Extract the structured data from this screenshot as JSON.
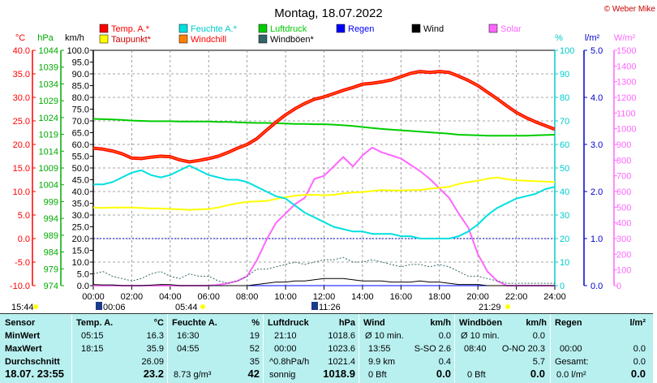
{
  "header": {
    "title": "Montag, 18.07.2022",
    "copyright": "© Weber Mike"
  },
  "legend": [
    {
      "label": "Temp. A.*",
      "color": "#ff0000"
    },
    {
      "label": "Feuchte A.*",
      "color": "#00e0e0"
    },
    {
      "label": "Luftdruck",
      "color": "#00cc00"
    },
    {
      "label": "Regen",
      "color": "#0000ff"
    },
    {
      "label": "Wind",
      "color": "#000000"
    },
    {
      "label": "Solar",
      "color": "#ff66ff"
    },
    {
      "label": "Taupunkt*",
      "color": "#ffff00"
    },
    {
      "label": "Windchill",
      "color": "#ff8000"
    },
    {
      "label": "Windböen*",
      "color": "#336666"
    }
  ],
  "axes": {
    "temp": {
      "unit": "°C",
      "ticks": [
        "40.0",
        "35.0",
        "30.0",
        "25.0",
        "20.0",
        "15.0",
        "10.0",
        "5.0",
        "0.0",
        "-5.0",
        "-10.0"
      ],
      "color": "#ff0000"
    },
    "press": {
      "unit": "hPa",
      "ticks": [
        "1044",
        "1039",
        "1034",
        "1029",
        "1024",
        "1019",
        "1014",
        "1009",
        "1004",
        "999",
        "994",
        "989",
        "984",
        "979",
        "974"
      ],
      "color": "#00aa00"
    },
    "wind": {
      "unit": "km/h",
      "ticks": [
        "100.0",
        "95.0",
        "90.0",
        "85.0",
        "80.0",
        "75.0",
        "70.0",
        "65.0",
        "60.0",
        "55.0",
        "50.0",
        "45.0",
        "40.0",
        "35.0",
        "30.0",
        "25.0",
        "20.0",
        "15.0",
        "10.0",
        "5.0",
        "0.0"
      ],
      "color": "#000000"
    },
    "hum": {
      "unit": "%",
      "ticks": [
        "100",
        "90",
        "80",
        "70",
        "60",
        "50",
        "40",
        "30",
        "20",
        "10",
        "0"
      ],
      "color": "#00cccc"
    },
    "rain": {
      "unit": "l/m²",
      "ticks": [
        "5.0",
        "4.0",
        "3.0",
        "2.0",
        "1.0",
        "0.0"
      ],
      "color": "#0000cc"
    },
    "solar": {
      "unit": "W/m²",
      "ticks": [
        "1500",
        "1400",
        "1300",
        "1200",
        "1100",
        "1000",
        "900",
        "800",
        "700",
        "600",
        "500",
        "400",
        "300",
        "200",
        "100",
        "0"
      ],
      "color": "#ff66ff"
    },
    "x": {
      "ticks": [
        "00:00",
        "02:00",
        "04:00",
        "06:00",
        "08:00",
        "10:00",
        "12:00",
        "14:00",
        "16:00",
        "18:00",
        "20:00",
        "22:00",
        "24:00"
      ]
    }
  },
  "sun_markers": {
    "sunrise_label": "05:44",
    "sunset_label": "21:29",
    "moon_labels": [
      "00:06",
      "11:26"
    ],
    "day_length": "15:44"
  },
  "chart_data": {
    "type": "line",
    "title": "Montag, 18.07.2022",
    "x_hours": [
      0,
      0.5,
      1,
      1.5,
      2,
      2.5,
      3,
      3.5,
      4,
      4.5,
      5,
      5.5,
      6,
      6.5,
      7,
      7.5,
      8,
      8.5,
      9,
      9.5,
      10,
      10.5,
      11,
      11.5,
      12,
      12.5,
      13,
      13.5,
      14,
      14.5,
      15,
      15.5,
      16,
      16.5,
      17,
      17.5,
      18,
      18.5,
      19,
      19.5,
      20,
      20.5,
      21,
      21.5,
      22,
      22.5,
      23,
      23.5,
      24
    ],
    "series": [
      {
        "name": "Temp. A.*",
        "axis": "temp",
        "color": "#ff0000",
        "width": 4,
        "values": [
          19.2,
          19.0,
          18.6,
          18.0,
          17.1,
          17.0,
          17.3,
          17.5,
          17.4,
          16.7,
          16.3,
          16.6,
          17.0,
          17.5,
          18.3,
          19.2,
          20.0,
          21.2,
          23.0,
          24.7,
          26.3,
          27.6,
          28.7,
          29.6,
          30.1,
          30.8,
          31.5,
          32.1,
          32.8,
          33.0,
          33.3,
          33.7,
          34.4,
          35.1,
          35.5,
          35.3,
          35.5,
          35.3,
          34.5,
          33.6,
          32.5,
          31.1,
          29.7,
          28.2,
          26.8,
          25.7,
          24.8,
          24.0,
          23.2
        ]
      },
      {
        "name": "Windchill",
        "axis": "temp",
        "color": "#ff8000",
        "width": 1,
        "values": [
          19.2,
          19.0,
          18.6,
          18.0,
          17.1,
          17.0,
          17.3,
          17.5,
          17.4,
          16.7,
          16.3,
          16.6,
          17.0,
          17.5,
          18.3,
          19.2,
          20.0,
          21.2,
          23.0,
          24.7,
          26.3,
          27.6,
          28.7,
          29.6,
          30.1,
          30.8,
          31.5,
          32.1,
          32.8,
          33.0,
          33.3,
          33.7,
          34.4,
          35.1,
          35.5,
          35.3,
          35.5,
          35.3,
          34.5,
          33.6,
          32.5,
          31.1,
          29.7,
          28.2,
          26.8,
          25.7,
          24.8,
          24.0,
          23.2
        ]
      },
      {
        "name": "Feuchte A.*",
        "axis": "hum",
        "color": "#00e0e0",
        "width": 2,
        "values": [
          43,
          43,
          44,
          46,
          48,
          49,
          47,
          46,
          47,
          49,
          51,
          49,
          47,
          46,
          45,
          45,
          44,
          42,
          40,
          38,
          37,
          34,
          31,
          29,
          27,
          25,
          24,
          23,
          23,
          22,
          22,
          22,
          21,
          21,
          20,
          20,
          20,
          20,
          21,
          23,
          26,
          30,
          33,
          35,
          37,
          38,
          39,
          41,
          42
        ]
      },
      {
        "name": "Luftdruck",
        "axis": "press",
        "color": "#00cc00",
        "width": 2,
        "values": [
          1023.6,
          1023.5,
          1023.4,
          1023.3,
          1023.1,
          1023.0,
          1022.9,
          1022.9,
          1022.9,
          1022.8,
          1022.8,
          1022.8,
          1022.8,
          1022.7,
          1022.7,
          1022.6,
          1022.5,
          1022.4,
          1022.4,
          1022.3,
          1022.2,
          1022.1,
          1022.1,
          1022.0,
          1022.0,
          1021.9,
          1021.7,
          1021.5,
          1021.2,
          1020.9,
          1020.6,
          1020.4,
          1020.2,
          1020.0,
          1019.8,
          1019.6,
          1019.4,
          1019.2,
          1018.9,
          1018.8,
          1018.7,
          1018.6,
          1018.6,
          1018.6,
          1018.6,
          1018.6,
          1018.7,
          1018.8,
          1018.9
        ]
      },
      {
        "name": "Taupunkt*",
        "axis": "temp",
        "color": "#ffff00",
        "width": 2,
        "values": [
          6.6,
          6.5,
          6.6,
          6.6,
          6.6,
          6.5,
          6.4,
          6.4,
          6.3,
          6.2,
          6.1,
          6.2,
          6.3,
          6.6,
          7.1,
          7.5,
          7.8,
          7.9,
          8.0,
          8.4,
          8.8,
          9.1,
          9.3,
          9.3,
          9.2,
          9.3,
          9.6,
          9.8,
          9.9,
          10.1,
          10.3,
          10.2,
          10.2,
          10.3,
          10.3,
          10.6,
          10.8,
          11.0,
          11.6,
          12.0,
          12.3,
          12.7,
          13.0,
          12.6,
          12.4,
          12.3,
          12.2,
          12.1,
          12.0
        ]
      },
      {
        "name": "Windböen*",
        "axis": "wind",
        "color": "#336666",
        "width": 1,
        "dashed": true,
        "values": [
          5,
          6,
          4,
          3,
          2,
          3,
          5,
          6,
          4,
          3,
          5,
          4,
          4,
          2,
          1,
          2,
          4,
          7,
          7,
          8,
          9,
          10,
          9,
          10,
          11,
          11,
          12,
          10,
          10,
          11,
          10,
          9,
          8,
          9,
          9,
          8,
          9,
          8,
          6,
          4,
          4,
          3,
          2,
          1,
          1,
          1,
          1,
          1,
          1
        ]
      },
      {
        "name": "Wind",
        "axis": "wind",
        "color": "#000000",
        "width": 1,
        "values": [
          0.5,
          0.3,
          0.3,
          0,
          0,
          0,
          0.2,
          0.5,
          0.4,
          0,
          0,
          0,
          0,
          0,
          0,
          0,
          0,
          0.5,
          1.0,
          1.5,
          1.5,
          2.0,
          2.0,
          2.5,
          3.0,
          3.0,
          3.0,
          2.5,
          2.0,
          2.0,
          2.0,
          1.5,
          1.5,
          1.5,
          2.0,
          1.5,
          1.5,
          1.0,
          0.5,
          0.5,
          0.5,
          0,
          0,
          0,
          0,
          0,
          0,
          0,
          0
        ]
      },
      {
        "name": "Solar",
        "axis": "solar",
        "color": "#ff66ff",
        "width": 2,
        "values": [
          0,
          0,
          0,
          0,
          0,
          0,
          0,
          0,
          0,
          0,
          0,
          0,
          0,
          5,
          15,
          30,
          60,
          160,
          290,
          400,
          460,
          520,
          560,
          680,
          700,
          760,
          820,
          760,
          830,
          880,
          850,
          830,
          810,
          770,
          730,
          680,
          620,
          560,
          460,
          370,
          200,
          90,
          30,
          0,
          0,
          0,
          0,
          0,
          0
        ]
      },
      {
        "name": "Regen",
        "axis": "rain",
        "color": "#0000ff",
        "width": 1,
        "values": [
          0,
          0,
          0,
          0,
          0,
          0,
          0,
          0,
          0,
          0,
          0,
          0,
          0,
          0,
          0,
          0,
          0,
          0,
          0,
          0,
          0,
          0,
          0,
          0,
          0,
          0,
          0,
          0,
          0,
          0,
          0,
          0,
          0,
          0,
          0,
          0,
          0,
          0,
          0,
          0,
          0,
          0,
          0,
          0,
          0,
          0,
          0,
          0,
          0
        ]
      }
    ]
  },
  "stats": {
    "headers": {
      "sensor": "Sensor",
      "temp": "Temp. A.",
      "temp_unit": "°C",
      "hum": "Feuchte A.",
      "hum_unit": "%",
      "press": "Luftdruck",
      "press_unit": "hPa",
      "wind": "Wind",
      "wind_unit": "km/h",
      "gust": "Windböen",
      "gust_unit": "km/h",
      "rain": "Regen",
      "rain_unit": "l/m²"
    },
    "row_labels": {
      "min": "MinWert",
      "max": "MaxWert",
      "avg": "Durchschnitt",
      "now": "18.07. 23:55"
    },
    "temp": {
      "min_time": "05:15",
      "min": "16.3",
      "max_time": "18:15",
      "max": "35.9",
      "avg": "26.09",
      "now": "23.2"
    },
    "hum": {
      "min_time": "16:30",
      "min": "19",
      "max_time": "04:55",
      "max": "52",
      "avg": "35",
      "now_extra": "8.73 g/m³",
      "now": "42"
    },
    "press": {
      "min_time": "21:10",
      "min": "1018.6",
      "max_time": "00:00",
      "max": "1023.6",
      "trend": "^0.8hPa/h",
      "avg": "1021.4",
      "state": "sonnig",
      "now": "1018.9"
    },
    "wind": {
      "r1_label": "Ø 10 min.",
      "r1": "0.0",
      "r2_label": "13:55",
      "r2_dir": "S-SO 2.6",
      "r3_label": "9.9 km",
      "r3": "0.4",
      "r4_label": "0 Bft",
      "now": "0.0"
    },
    "gust": {
      "r1_label": "Ø 10 min.",
      "r1": "0.0",
      "r2_label": "08:40",
      "r2_dir": "O-NO 20.3",
      "r3": "5.7",
      "r4_label": "0 Bft",
      "now": "0.0"
    },
    "rain": {
      "r2_label": "00:00",
      "r2": "0.0",
      "r3_label": "Gesamt:",
      "r3": "0.0",
      "r4_label": "0.0 l/m²",
      "now": "0.0"
    }
  }
}
